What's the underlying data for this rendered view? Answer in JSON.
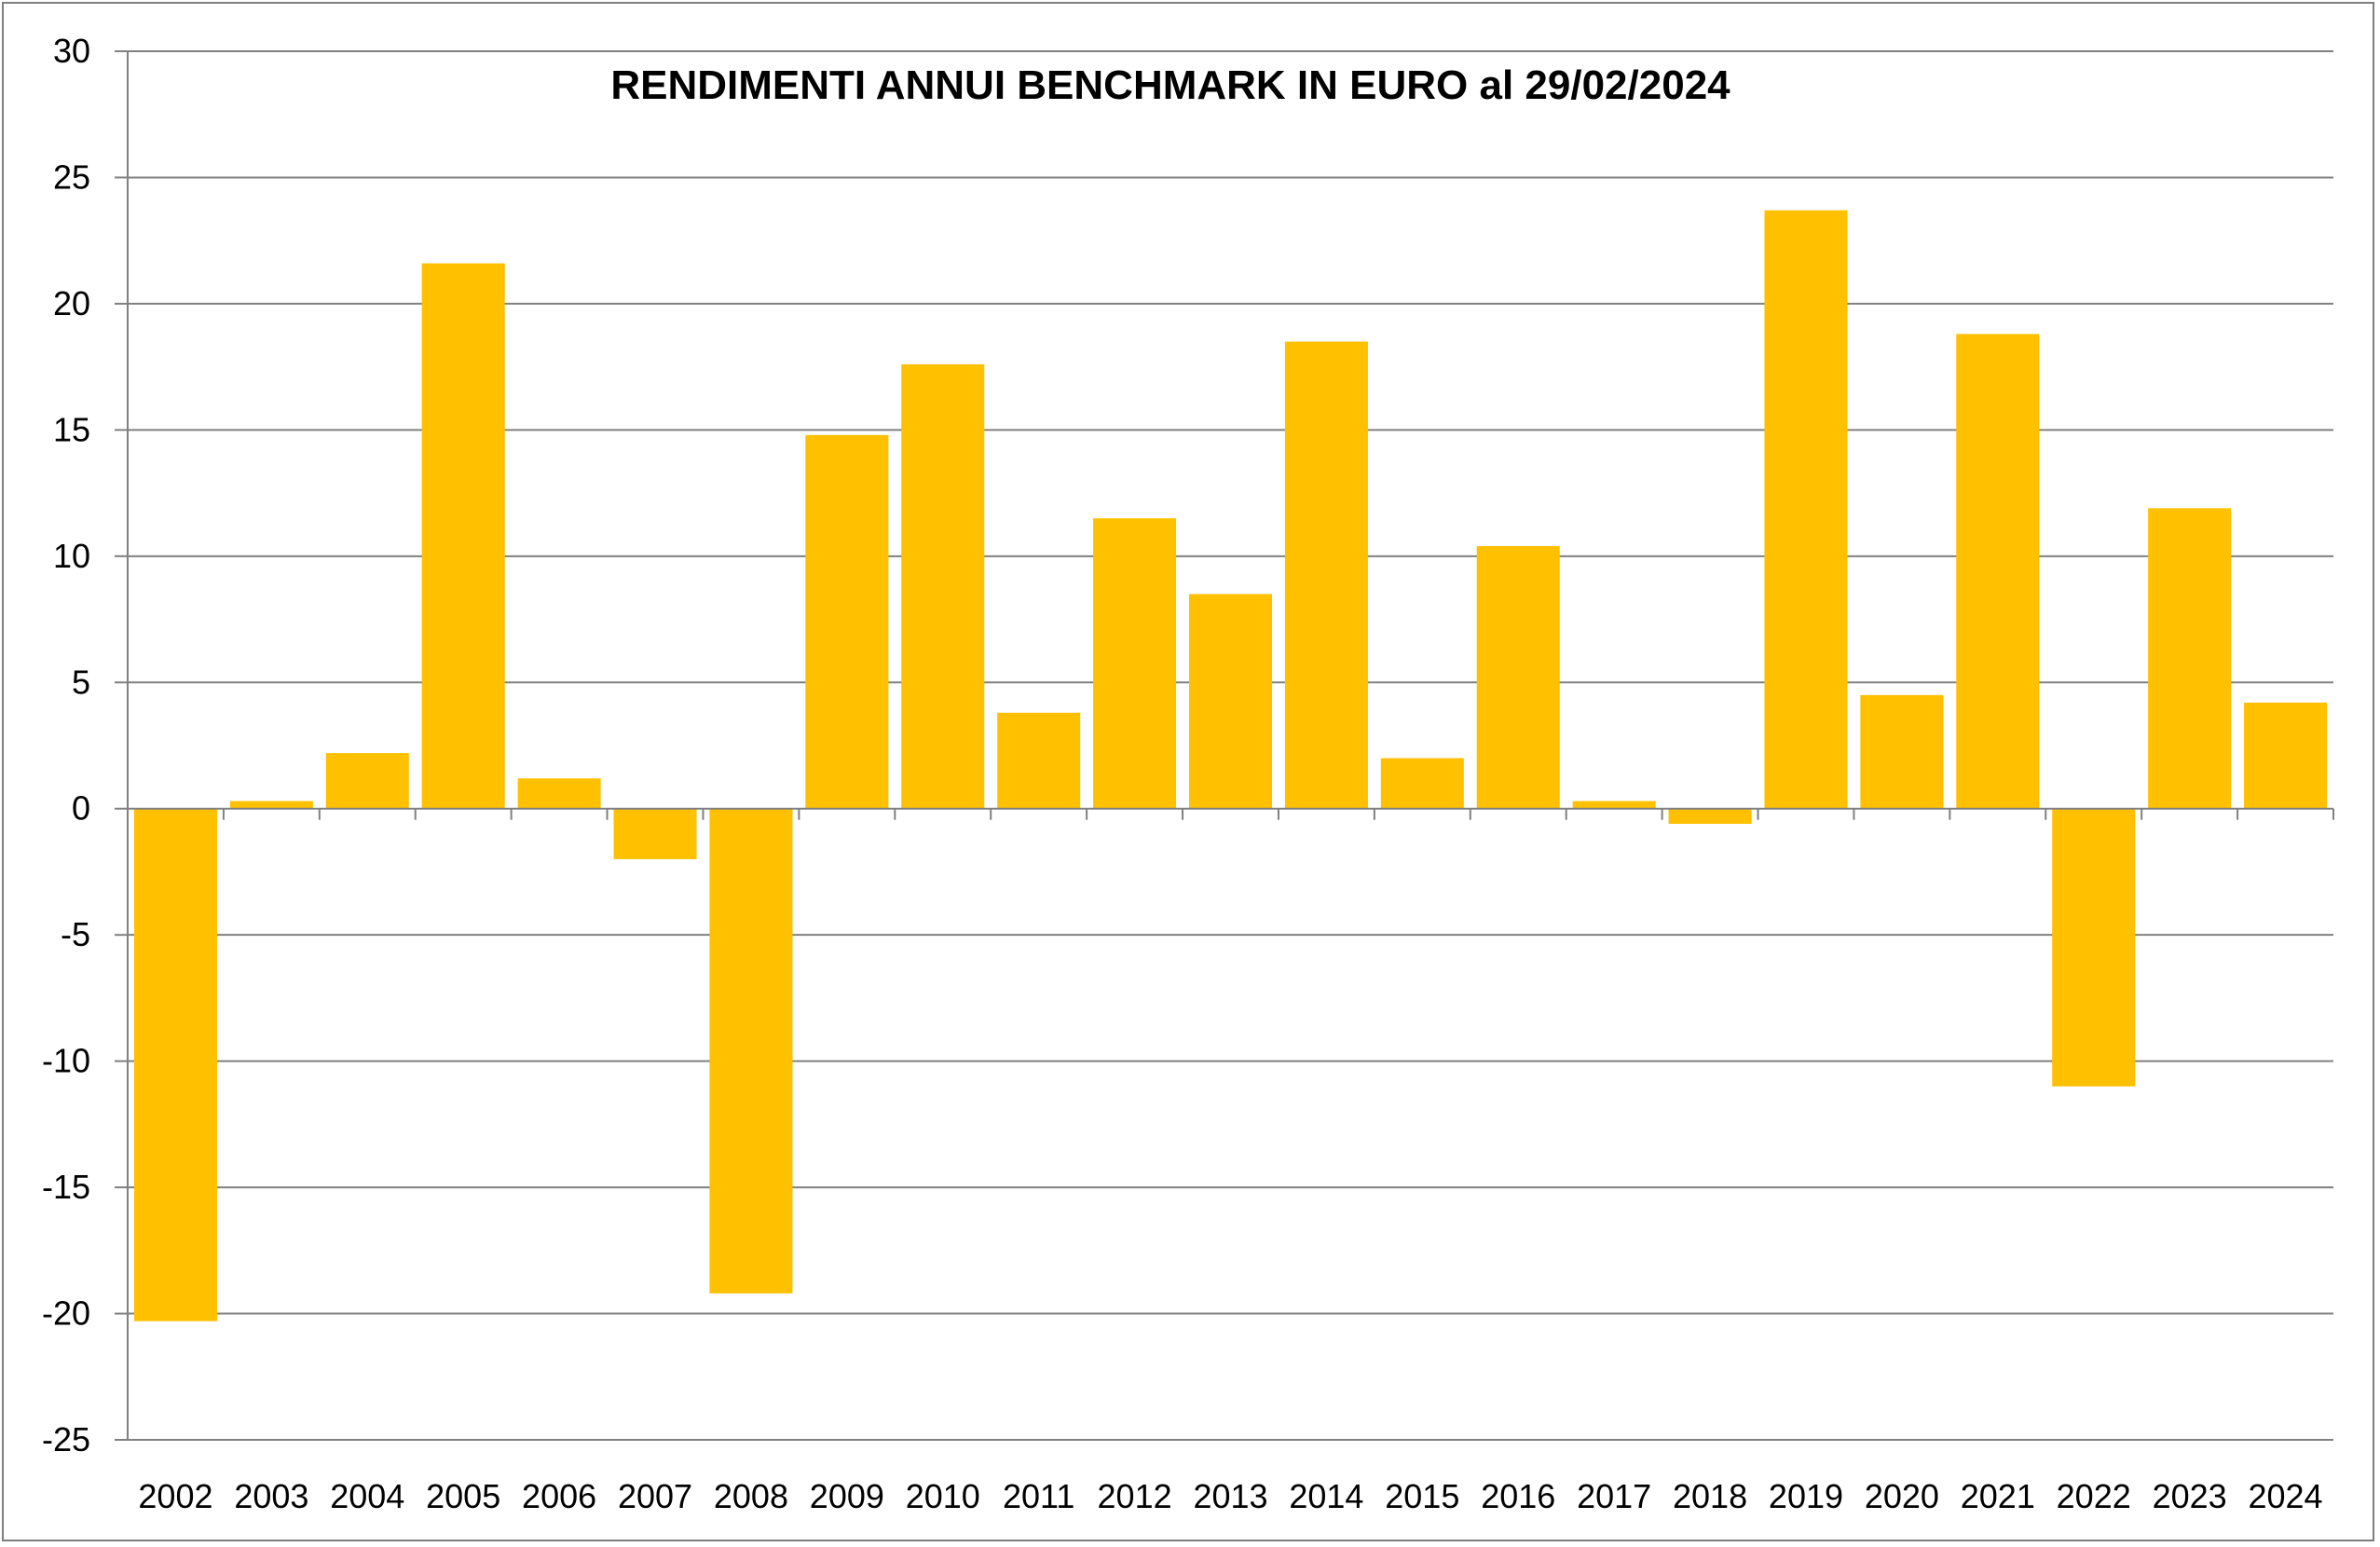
{
  "chart_data": {
    "type": "bar",
    "title": "RENDIMENTI ANNUI BENCHMARK IN EURO al 29/02/2024",
    "xlabel": "",
    "ylabel": "",
    "ylim": [
      -25,
      30
    ],
    "yticks": [
      30,
      25,
      20,
      15,
      10,
      5,
      0,
      -5,
      -10,
      -15,
      -20,
      -25
    ],
    "grid": true,
    "legend": "none",
    "bar_color": "#FFC000",
    "categories": [
      "2002",
      "2003",
      "2004",
      "2005",
      "2006",
      "2007",
      "2008",
      "2009",
      "2010",
      "2011",
      "2012",
      "2013",
      "2014",
      "2015",
      "2016",
      "2017",
      "2018",
      "2019",
      "2020",
      "2021",
      "2022",
      "2023",
      "2024"
    ],
    "values": [
      -20.3,
      0.3,
      2.2,
      21.6,
      1.2,
      -2.0,
      -19.2,
      14.8,
      17.6,
      3.8,
      11.5,
      8.5,
      18.5,
      2.0,
      10.4,
      0.3,
      -0.6,
      23.7,
      4.5,
      18.8,
      -11.0,
      11.9,
      4.2
    ]
  }
}
